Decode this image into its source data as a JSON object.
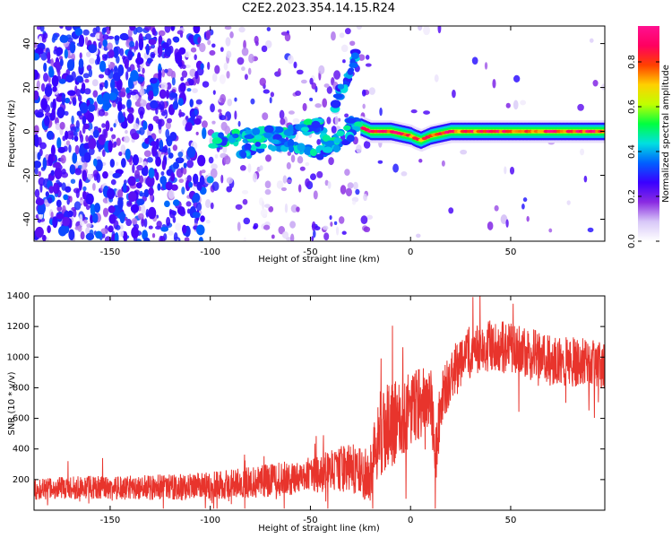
{
  "title": "C2E2.2023.354.14.15.R24",
  "chart_data": [
    {
      "type": "heatmap",
      "title": "C2E2.2023.354.14.15.R24",
      "xlabel": "Height of straight line (km)",
      "ylabel": "Frequency (Hz)",
      "xlim": [
        -188,
        97
      ],
      "ylim": [
        -50,
        48
      ],
      "xticks": [
        -150,
        -100,
        -50,
        0,
        50
      ],
      "yticks": [
        -40,
        -20,
        0,
        20,
        40
      ],
      "colorbar": {
        "label": "Normalized spectral amplitude",
        "range": [
          0.0,
          0.96
        ],
        "ticks": [
          0.0,
          0.2,
          0.4,
          0.6,
          0.8
        ],
        "tick_labels": [
          "0.0",
          "0.2",
          "0.4",
          "0.6",
          "0.8"
        ],
        "colormap": [
          "#ffffff",
          "#d8c8f8",
          "#8a2be2",
          "#3a00ff",
          "#0060ff",
          "#00e0e0",
          "#00ff40",
          "#c0ff00",
          "#ffd000",
          "#ff4000",
          "#ff0060",
          "#ff1090"
        ]
      },
      "ridge": {
        "description_free_band_center_hz": [
          [
            -100,
            -5
          ],
          [
            -90,
            -3
          ],
          [
            -80,
            -2
          ],
          [
            -70,
            -1
          ],
          [
            -60,
            0
          ],
          [
            -50,
            2
          ],
          [
            -45,
            3
          ],
          [
            -40,
            -8
          ],
          [
            -35,
            -3
          ],
          [
            -30,
            5
          ],
          [
            -25,
            2
          ],
          [
            -20,
            0
          ],
          [
            -10,
            0
          ],
          [
            0,
            -2
          ],
          [
            2,
            -3
          ],
          [
            5,
            -4
          ],
          [
            10,
            -2
          ],
          [
            20,
            0
          ],
          [
            50,
            0
          ],
          [
            95,
            0
          ]
        ],
        "lower_branch_hz": [
          [
            -85,
            -10
          ],
          [
            -75,
            -7
          ],
          [
            -65,
            -6
          ],
          [
            -55,
            -8
          ],
          [
            -45,
            -10
          ],
          [
            -35,
            -5
          ],
          [
            -25,
            2
          ]
        ],
        "upper_branch_hz": [
          [
            -38,
            12
          ],
          [
            -33,
            22
          ],
          [
            -30,
            27
          ],
          [
            -27,
            37
          ]
        ],
        "band_amplitude": 0.6,
        "peak_amplitude": 0.95
      }
    },
    {
      "type": "line",
      "xlabel": "Height of straight line (km)",
      "ylabel": "SNR (10 * v/v)",
      "xlim": [
        -188,
        97
      ],
      "ylim": [
        0,
        1400
      ],
      "xticks": [
        -150,
        -100,
        -50,
        0,
        50
      ],
      "yticks": [
        200,
        400,
        600,
        800,
        1000,
        1200,
        1400
      ],
      "series": [
        {
          "name": "SNR",
          "color": "#e8342c",
          "trend": {
            "x": [
              -188,
              -160,
              -140,
              -120,
              -100,
              -85,
              -70,
              -60,
              -50,
              -40,
              -35,
              -30,
              -25,
              -20,
              -17,
              -15,
              -10,
              -5,
              0,
              5,
              10,
              13,
              15,
              20,
              25,
              30,
              40,
              50,
              60,
              70,
              80,
              90,
              97
            ],
            "y": [
              140,
              150,
              145,
              150,
              160,
              175,
              195,
              210,
              230,
              250,
              270,
              280,
              250,
              220,
              450,
              500,
              550,
              600,
              650,
              700,
              720,
              350,
              700,
              880,
              950,
              1050,
              1080,
              1050,
              1020,
              980,
              970,
              960,
              950
            ]
          },
          "noise": {
            "x": [
              -188,
              -100,
              -50,
              -20,
              -15,
              20,
              97
            ],
            "amplitude": [
              70,
              90,
              120,
              180,
              300,
              180,
              160
            ]
          }
        }
      ]
    }
  ]
}
